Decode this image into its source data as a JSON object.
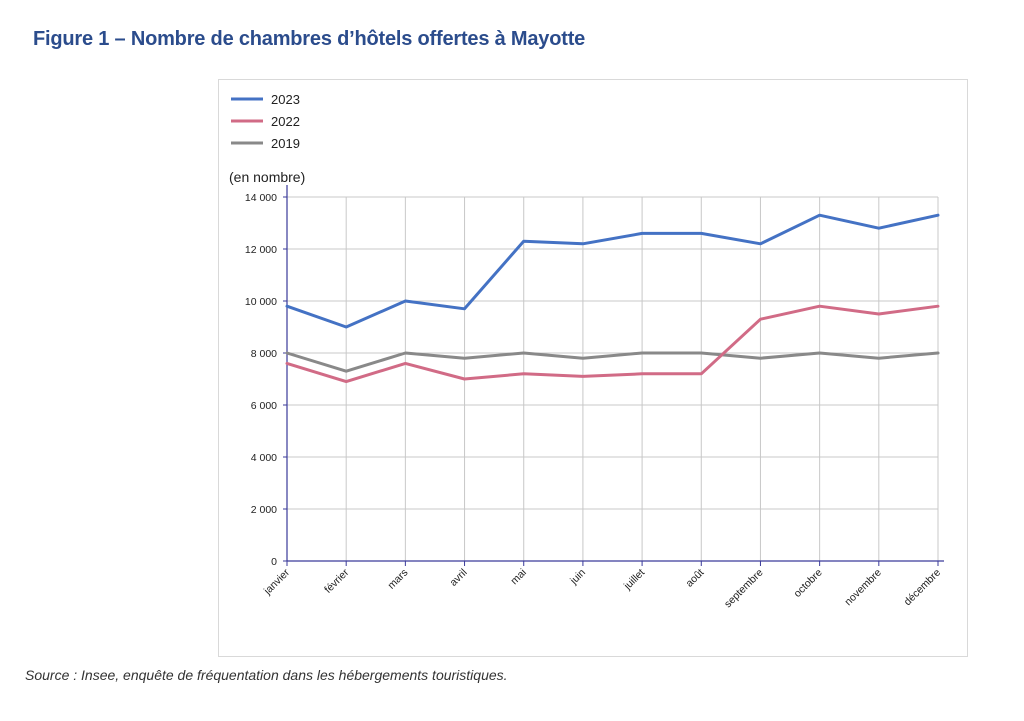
{
  "title": "Figure 1 – Nombre de chambres d’hôtels offertes à Mayotte",
  "source": "Source : Insee, enquête de fréquentation dans les hébergements touristiques.",
  "chart_data": {
    "type": "line",
    "unit_label": "(en nombre)",
    "categories": [
      "janvier",
      "février",
      "mars",
      "avril",
      "mai",
      "juin",
      "juillet",
      "août",
      "septembre",
      "octobre",
      "novembre",
      "décembre"
    ],
    "ylim": [
      0,
      14000
    ],
    "yticks": [
      0,
      2000,
      4000,
      6000,
      8000,
      10000,
      12000,
      14000
    ],
    "ytick_labels": [
      "0",
      "2 000",
      "4 000",
      "6 000",
      "8 000",
      "10 000",
      "12 000",
      "14 000"
    ],
    "grid": true,
    "legend_position": "top-left",
    "series": [
      {
        "name": "2023",
        "color": "#4472c4",
        "values": [
          9800,
          9000,
          10000,
          9700,
          12300,
          12200,
          12600,
          12600,
          12200,
          13300,
          12800,
          13300
        ]
      },
      {
        "name": "2022",
        "color": "#d16b86",
        "values": [
          7600,
          6900,
          7600,
          7000,
          7200,
          7100,
          7200,
          7200,
          9300,
          9800,
          9500,
          9800
        ]
      },
      {
        "name": "2019",
        "color": "#898989",
        "values": [
          8000,
          7300,
          8000,
          7800,
          8000,
          7800,
          8000,
          8000,
          7800,
          8000,
          7800,
          8000
        ]
      }
    ]
  }
}
